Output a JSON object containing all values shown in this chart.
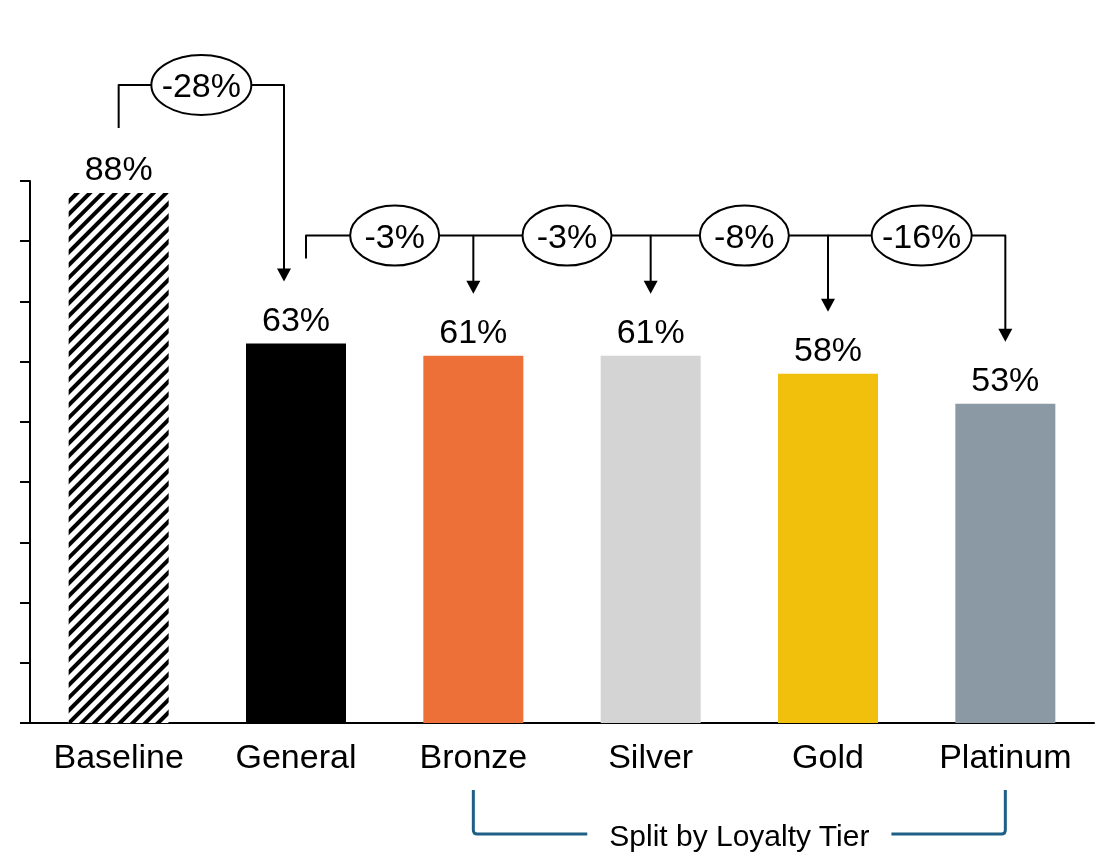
{
  "chart_data": {
    "type": "bar",
    "categories": [
      "Baseline",
      "General",
      "Bronze",
      "Silver",
      "Gold",
      "Platinum"
    ],
    "values": [
      88,
      63,
      61,
      61,
      58,
      53
    ],
    "colors": [
      "#000000",
      "#000000",
      "#ed7038",
      "#d4d4d4",
      "#f0c00c",
      "#8a99a3"
    ],
    "value_labels": [
      "88%",
      "63%",
      "61%",
      "61%",
      "58%",
      "53%"
    ],
    "ylim": [
      0,
      90
    ],
    "yticks": [
      {
        "value": 0,
        "label": null
      },
      {
        "value": 10,
        "label": null
      },
      {
        "value": 20,
        "label": null
      },
      {
        "value": 30,
        "label": null
      },
      {
        "value": 40,
        "label": null
      },
      {
        "value": 50,
        "label": null
      },
      {
        "value": 60,
        "label": null
      },
      {
        "value": 70,
        "label": null
      },
      {
        "value": 80,
        "label": null
      },
      {
        "value": 90,
        "label": null
      }
    ],
    "tick_labels": "x",
    "grid": false,
    "annotations": [
      "-28%",
      "-3%",
      "-3%",
      "-8%",
      "-16%",
      "Split by Loyalty Tier"
    ]
  }
}
